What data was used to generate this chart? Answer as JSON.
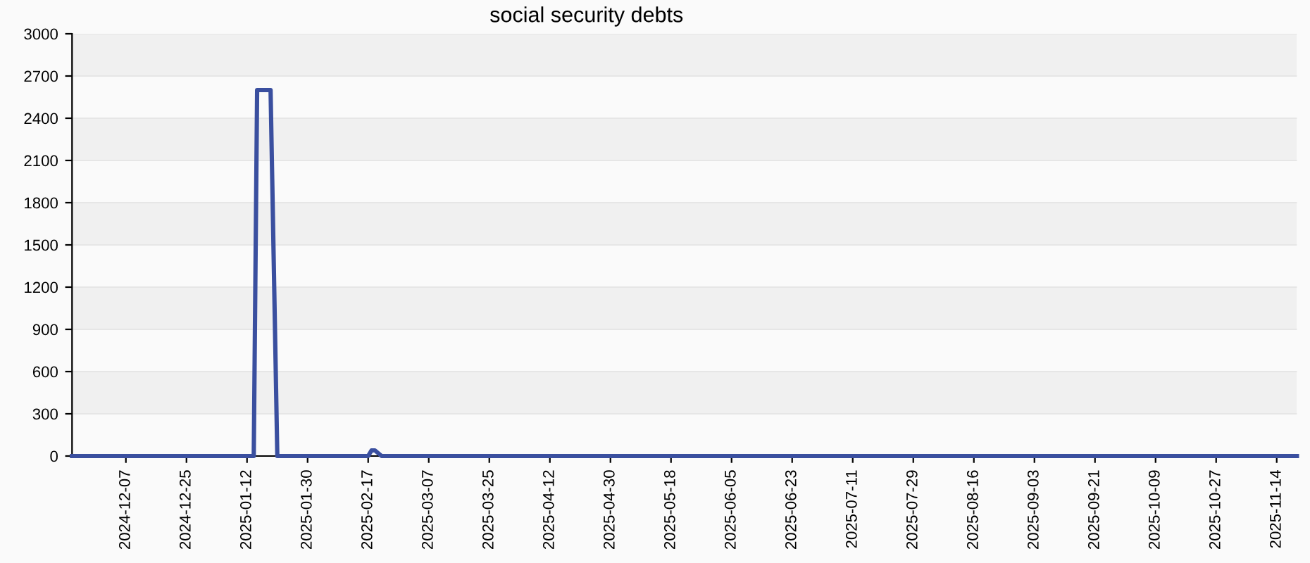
{
  "chart_data": {
    "type": "line",
    "title": "social security debts",
    "x": [
      "2024-11-21",
      "2025-01-14",
      "2025-01-15",
      "2025-01-19",
      "2025-01-21",
      "2025-02-17",
      "2025-02-18",
      "2025-02-19",
      "2025-02-21",
      "2025-11-20"
    ],
    "series": [
      {
        "color": "#3a4f9f",
        "values": [
          0,
          0,
          2600,
          2600,
          0,
          0,
          40,
          40,
          0,
          0
        ]
      }
    ],
    "xlim": [
      "2024-11-21",
      "2025-11-20"
    ],
    "xticks": [
      "2024-12-07",
      "2024-12-25",
      "2025-01-12",
      "2025-01-30",
      "2025-02-17",
      "2025-03-07",
      "2025-03-25",
      "2025-04-12",
      "2025-04-30",
      "2025-05-18",
      "2025-06-05",
      "2025-06-23",
      "2025-07-11",
      "2025-07-29",
      "2025-08-16",
      "2025-09-03",
      "2025-09-21",
      "2025-10-09",
      "2025-10-27",
      "2025-11-14"
    ],
    "ylim": [
      0,
      3000
    ],
    "yticks": [
      0,
      300,
      600,
      900,
      1200,
      1500,
      1800,
      2100,
      2400,
      2700,
      3000
    ],
    "grid": "y",
    "marker": "none",
    "line_style": "solid",
    "legend": false
  }
}
